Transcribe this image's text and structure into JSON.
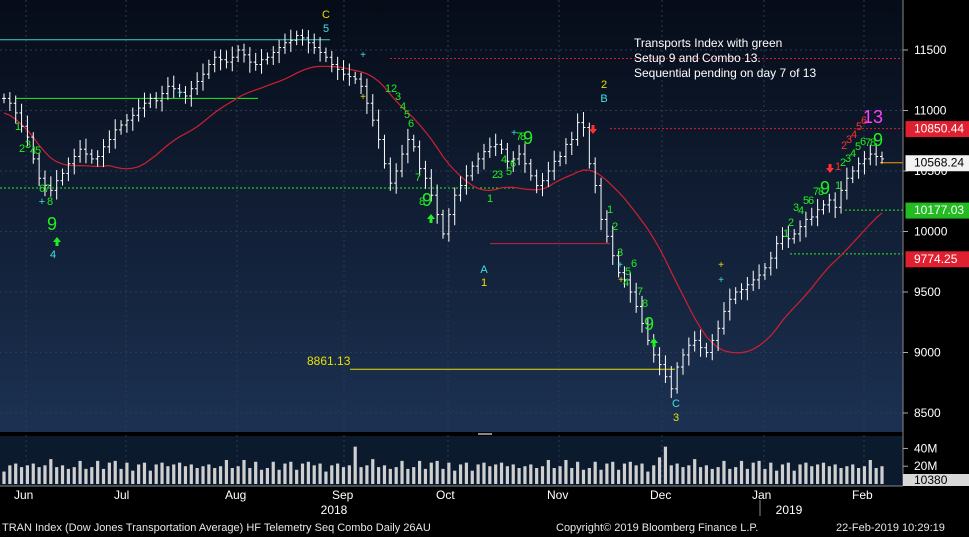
{
  "footer": {
    "left": "TRAN Index (Dow Jones Transportation Average) HF Telemetry Seq Combo  Daily 26AU",
    "center": "Copyright© 2019 Bloomberg Finance L.P.",
    "right": "22-Feb-2019 10:29:19"
  },
  "annotation": {
    "line1": "Transports Index with green",
    "line2": "Setup 9 and Combo 13.",
    "line3": "Sequential pending on day 7 of 13"
  },
  "colors": {
    "background_top": "#060c18",
    "background_bottom": "#1c3152",
    "candle": "#ffffff",
    "moving_average": "#d02030",
    "count_green": "#22ee22",
    "count_cyan": "#40e0e0",
    "count_yellow": "#e8e000",
    "count_red": "#ff3030",
    "count_magenta": "#ff40ff",
    "volume": "#cfcfcf"
  },
  "chart_data": {
    "type": "candlestick",
    "title": "TRAN Index (Dow Jones Transportation Average)",
    "y_ticks": [
      "11500",
      "11000",
      "10500",
      "10000",
      "9500",
      "9000",
      "8500"
    ],
    "ylim": [
      8300,
      11900
    ],
    "x_months": [
      "Jun",
      "Jul",
      "Aug",
      "Sep",
      "Oct",
      "Nov",
      "Dec",
      "Jan",
      "Feb"
    ],
    "x_years": [
      "2018",
      "2019"
    ],
    "price_labels": [
      {
        "text": "10850.44",
        "value": 10850.44,
        "color": "#e02030"
      },
      {
        "text": "10568.24",
        "value": 10568.24,
        "color": "#000000"
      },
      {
        "text": "10177.03",
        "value": 10177.03,
        "color": "#22bb22"
      },
      {
        "text": "9774.25",
        "value": 9774.25,
        "color": "#e02030"
      }
    ],
    "level_label": {
      "text": "8861.13",
      "value": 8861.13
    },
    "volume_ticks": [
      "40M",
      "20M",
      "10380"
    ],
    "volume_last": 10380,
    "closes": [
      11100,
      11060,
      10980,
      10870,
      10780,
      10600,
      10440,
      10380,
      10340,
      10420,
      10480,
      10560,
      10620,
      10680,
      10640,
      10600,
      10620,
      10700,
      10760,
      10840,
      10880,
      10920,
      10960,
      11020,
      11060,
      11100,
      11080,
      11140,
      11200,
      11180,
      11150,
      11120,
      11180,
      11240,
      11300,
      11380,
      11440,
      11420,
      11400,
      11440,
      11500,
      11460,
      11400,
      11380,
      11420,
      11440,
      11480,
      11520,
      11560,
      11580,
      11620,
      11600,
      11560,
      11520,
      11480,
      11440,
      11380,
      11340,
      11300,
      11280,
      11260,
      11200,
      11060,
      10920,
      10760,
      10560,
      10400,
      10500,
      10640,
      10760,
      10700,
      10520,
      10440,
      10300,
      10140,
      9980,
      10140,
      10300,
      10380,
      10460,
      10540,
      10600,
      10660,
      10700,
      10720,
      10680,
      10580,
      10600,
      10640,
      10560,
      10460,
      10380,
      10420,
      10500,
      10580,
      10620,
      10720,
      10760,
      10900,
      10860,
      10560,
      10380,
      10100,
      9960,
      9800,
      9660,
      9600,
      9500,
      9380,
      9240,
      9100,
      8980,
      8900,
      8800,
      8700,
      8880,
      8980,
      9060,
      9100,
      9040,
      9000,
      9100,
      9200,
      9340,
      9440,
      9500,
      9520,
      9560,
      9600,
      9640,
      9700,
      9780,
      9900,
      9960,
      9940,
      9980,
      10040,
      10100,
      10120,
      10180,
      10220,
      10260,
      10200,
      10340,
      10440,
      10500,
      10560,
      10600,
      10640,
      10620,
      10600
    ]
  }
}
